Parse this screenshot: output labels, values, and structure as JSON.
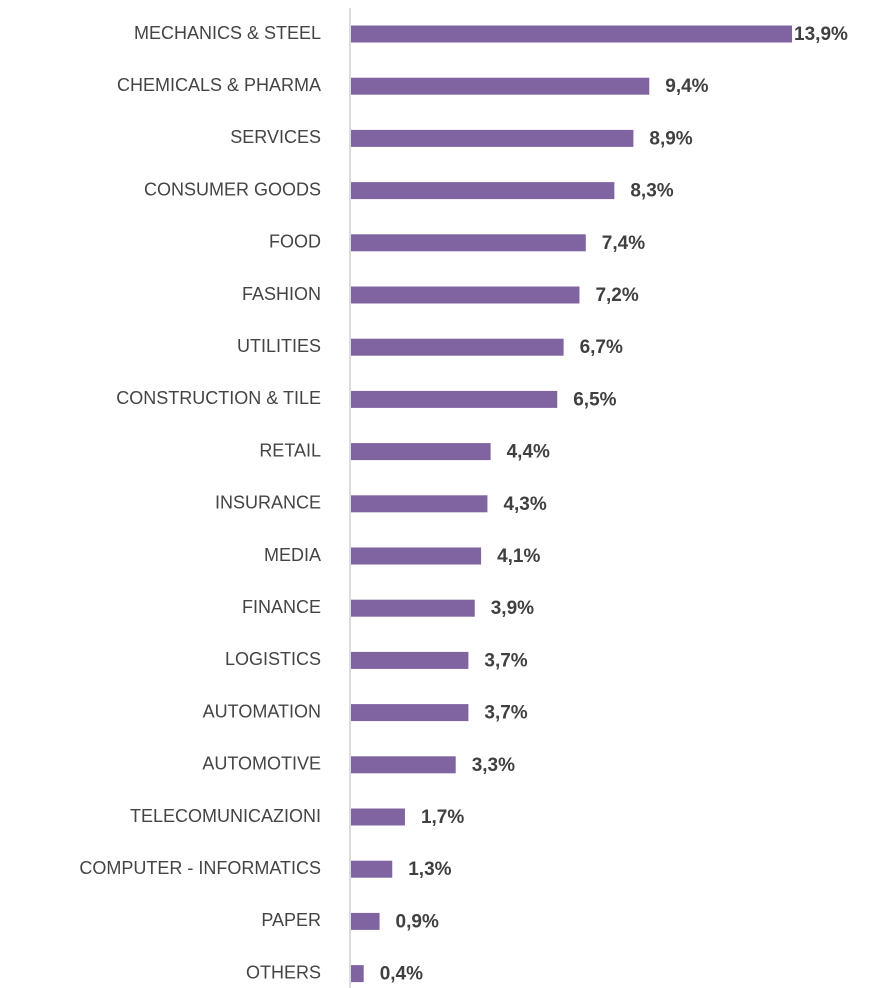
{
  "chart_data": {
    "type": "bar",
    "orientation": "horizontal",
    "categories": [
      "MECHANICS & STEEL",
      "CHEMICALS & PHARMA",
      "SERVICES",
      "CONSUMER GOODS",
      "FOOD",
      "FASHION",
      "UTILITIES",
      "CONSTRUCTION & TILE",
      "RETAIL",
      "INSURANCE",
      "MEDIA",
      "FINANCE",
      "LOGISTICS",
      "AUTOMATION",
      "AUTOMOTIVE",
      "TELECOMUNICAZIONI",
      "COMPUTER - INFORMATICS",
      "PAPER",
      "OTHERS"
    ],
    "values": [
      13.9,
      9.4,
      8.9,
      8.3,
      7.4,
      7.2,
      6.7,
      6.5,
      4.4,
      4.3,
      4.1,
      3.9,
      3.7,
      3.7,
      3.3,
      1.7,
      1.3,
      0.9,
      0.4
    ],
    "value_labels": [
      "13,9%",
      "9,4%",
      "8,9%",
      "8,3%",
      "7,4%",
      "7,2%",
      "6,7%",
      "6,5%",
      "4,4%",
      "4,3%",
      "4,1%",
      "3,9%",
      "3,7%",
      "3,7%",
      "3,3%",
      "1,7%",
      "1,3%",
      "0,9%",
      "0,4%"
    ],
    "color": "#8064a2"
  }
}
